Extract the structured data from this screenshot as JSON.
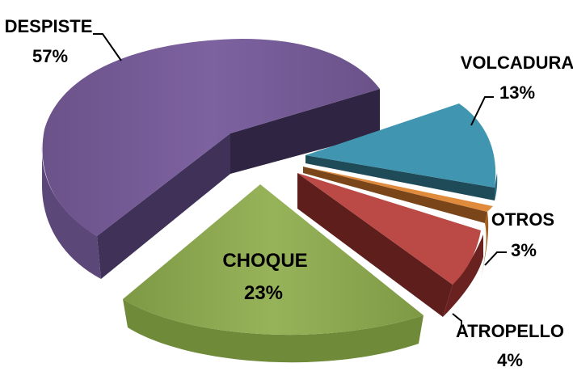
{
  "chart_data": {
    "type": "pie",
    "style": "3d-exploded",
    "legend": "none",
    "slices": [
      {
        "category": "DESPISTE",
        "percent_label": "57%",
        "value": 57,
        "color": "#7a5f99"
      },
      {
        "category": "VOLCADURA",
        "percent_label": "13%",
        "value": 13,
        "color": "#3d8fa8"
      },
      {
        "category": "OTROS",
        "percent_label": "3%",
        "value": 3,
        "color": "#e08a3c"
      },
      {
        "category": "ATROPELLO",
        "percent_label": "4%",
        "value": 4,
        "color": "#b84a47"
      },
      {
        "category": "CHOQUE",
        "percent_label": "23%",
        "value": 23,
        "color": "#92ad55"
      }
    ]
  }
}
